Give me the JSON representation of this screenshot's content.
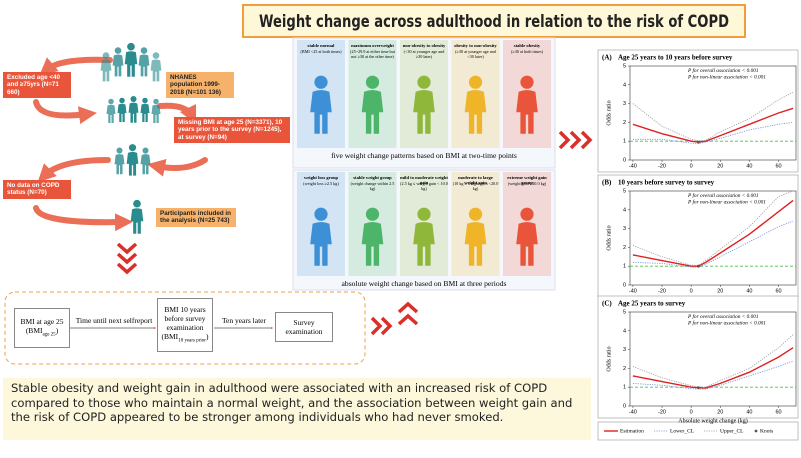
{
  "title": "Weight change across adulthood in relation to the risk of COPD",
  "flow": {
    "population": "NHANES population 1999-2018 (N=101 136)",
    "excluded_age": "Excluded age <40 and ≥75yrs (N=71 660)",
    "missing_bmi": "Missing BMI at age 25 (N=3371), 10 years prior to the survey (N=1245), at survey (N=94)",
    "no_copd": "No data on COPD status (N=70)",
    "included": "Participants included in the analysis (N=25 743)"
  },
  "timeline": {
    "bmi25": [
      "BMI at age 25 (BMI",
      "age 25",
      ")"
    ],
    "gap1": "Time until next selfreport",
    "bmi10": [
      "BMI 10 years before survey examination (BMI",
      "10 years prior",
      ")"
    ],
    "gap2": "Ten years later",
    "survey": "Survey examination"
  },
  "patterns": {
    "caption": "five weight change patterns based on BMI at two-time points",
    "groups": [
      {
        "name": "stable normal",
        "desc": "(BMI <25 at both times)",
        "color": "#3d8fd6"
      },
      {
        "name": "maximum overweight",
        "desc": "(25~29.9 at either time but not ≥30 at the other time)",
        "color": "#4cb56a"
      },
      {
        "name": "non-obesity to obesity",
        "desc": "(<30 at younger age and ≥30 later)",
        "color": "#8fb83a"
      },
      {
        "name": "obesity to non-obesity",
        "desc": "(≥30 at younger age and <30 later)",
        "color": "#f0b429"
      },
      {
        "name": "stable obesity",
        "desc": "(≥30 at both times)",
        "color": "#e8553a"
      }
    ]
  },
  "weight_change": {
    "caption": "absolute weight change  based on BMI at three periods",
    "groups": [
      {
        "name": "weight loss group",
        "desc": "(weight loss ≥2.5 kg)",
        "color": "#3d8fd6"
      },
      {
        "name": "stable weight group",
        "desc": "(weight change within 2.5 kg)",
        "color": "#4cb56a"
      },
      {
        "name": "mild to moderate weight gain",
        "desc": "(2.5 kg ≤ weight gain < 10.0 kg)",
        "color": "#8fb83a"
      },
      {
        "name": "moderate to large weight gain",
        "desc": "(10 kg ≤ weight gain <20.0 kg)",
        "color": "#f0b429"
      },
      {
        "name": "extreme weight gain group",
        "desc": "(weight gain ≥20.0 kg)",
        "color": "#e8553a"
      }
    ]
  },
  "conclusion": "Stable obesity and weight gain in adulthood were associated with an increased risk of COPD compared to those who maintain a normal weight, and the association between weight gain and the risk of COPD appeared to be stronger among individuals who had never smoked.",
  "chart_data": [
    {
      "type": "line",
      "panel": "(A)",
      "title": "Age 25 years to 10 years before survey",
      "annotations": [
        "P for overall association < 0.001",
        "P for non-linear association < 0.001"
      ],
      "ylabel": "Odds ratio",
      "xlim": [
        -42,
        72
      ],
      "ylim": [
        0,
        5
      ],
      "xticks": [
        -40,
        -20,
        0,
        20,
        40,
        60
      ],
      "yticks": [
        0,
        1,
        2,
        3,
        4,
        5
      ],
      "reference": 1,
      "reference_color": "#4cc04c",
      "x": [
        -40,
        -20,
        0,
        5,
        10,
        20,
        40,
        60,
        70
      ],
      "series": [
        {
          "color": "#e02020",
          "values": [
            1.9,
            1.4,
            1.0,
            0.95,
            1.0,
            1.3,
            1.9,
            2.5,
            2.75
          ]
        },
        {
          "color": "#6a8fd8",
          "values": [
            1.1,
            1.1,
            0.9,
            0.88,
            0.95,
            1.15,
            1.6,
            1.9,
            2.0
          ]
        },
        {
          "color": "#999999",
          "values": [
            3.0,
            1.8,
            1.1,
            1.02,
            1.05,
            1.5,
            2.2,
            3.2,
            3.6
          ]
        }
      ],
      "knots": {
        "x": [
          5
        ],
        "y": [
          0.95
        ],
        "color": "#555555"
      }
    },
    {
      "type": "line",
      "panel": "(B)",
      "title": "10 years before survey to survey",
      "annotations": [
        "P for overall association < 0.001",
        "P for non-linear association < 0.001"
      ],
      "ylabel": "Odds ratio",
      "xlim": [
        -42,
        72
      ],
      "ylim": [
        0,
        5
      ],
      "xticks": [
        -40,
        -20,
        0,
        20,
        40,
        60
      ],
      "yticks": [
        0,
        1,
        2,
        3,
        4,
        5
      ],
      "reference": 1,
      "reference_color": "#4cc04c",
      "x": [
        -40,
        -20,
        0,
        5,
        10,
        20,
        40,
        60,
        70
      ],
      "series": [
        {
          "color": "#e02020",
          "values": [
            1.6,
            1.3,
            1.0,
            1.0,
            1.2,
            1.7,
            2.7,
            3.9,
            4.5
          ]
        },
        {
          "color": "#6a8fd8",
          "values": [
            1.2,
            1.15,
            0.95,
            0.95,
            1.1,
            1.5,
            2.3,
            3.1,
            3.4
          ]
        },
        {
          "color": "#999999",
          "values": [
            2.1,
            1.5,
            1.05,
            1.05,
            1.3,
            1.9,
            3.1,
            4.7,
            5.0
          ]
        }
      ],
      "knots": {
        "x": [
          5
        ],
        "y": [
          1.0
        ],
        "color": "#555555"
      }
    },
    {
      "type": "line",
      "panel": "(C)",
      "title": "Age 25 years to survey",
      "annotations": [
        "P for overall association < 0.001",
        "P for non-linear association < 0.001"
      ],
      "ylabel": "Odds ratio",
      "xlabel": "Absolute weight change (kg)",
      "xlim": [
        -42,
        72
      ],
      "ylim": [
        0,
        5
      ],
      "xticks": [
        -40,
        -20,
        0,
        20,
        40,
        60
      ],
      "yticks": [
        0,
        1,
        2,
        3,
        4,
        5
      ],
      "reference": 1,
      "reference_color": "#4cc04c",
      "x": [
        -40,
        -20,
        0,
        5,
        10,
        20,
        40,
        60,
        70
      ],
      "series": [
        {
          "name": "Estimation",
          "color": "#e02020",
          "values": [
            1.6,
            1.3,
            1.0,
            0.97,
            0.95,
            1.2,
            1.8,
            2.6,
            3.1
          ]
        },
        {
          "name": "Lower_CL",
          "color": "#6a8fd8",
          "values": [
            1.2,
            1.1,
            0.92,
            0.9,
            0.9,
            1.1,
            1.6,
            2.1,
            2.4
          ]
        },
        {
          "name": "Upper_CL",
          "color": "#999999",
          "values": [
            2.1,
            1.5,
            1.08,
            1.02,
            1.0,
            1.35,
            2.0,
            3.1,
            3.8
          ]
        }
      ],
      "knots": {
        "name": "Knots",
        "x": [
          5
        ],
        "y": [
          0.97
        ],
        "color": "#555555"
      }
    }
  ]
}
